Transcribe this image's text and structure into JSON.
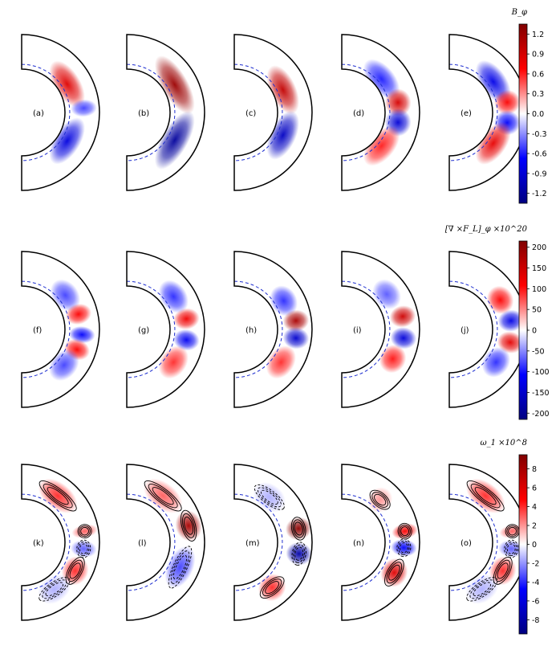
{
  "chart_data": [
    {
      "type": "heatmap",
      "colormap": "seismic",
      "colorbar_title": "B_φ",
      "colorbar_ticks": [
        "1.2",
        "0.9",
        "0.6",
        "0.3",
        "0.0",
        "-0.3",
        "-0.6",
        "-0.9",
        "-1.2"
      ],
      "clim": [
        -1.35,
        1.35
      ],
      "panels": [
        {
          "label": "(a)",
          "blobs": [
            {
              "lat": 32,
              "r": 0.3,
              "amp": 0.85,
              "w": 28
            },
            {
              "lat": -32,
              "r": 0.3,
              "amp": -0.85,
              "w": 28
            },
            {
              "lat": 4,
              "r": 0.55,
              "amp": -0.5,
              "w": 8
            }
          ]
        },
        {
          "label": "(b)",
          "blobs": [
            {
              "lat": 30,
              "r": 0.35,
              "amp": 1.2,
              "w": 34
            },
            {
              "lat": -30,
              "r": 0.35,
              "amp": -1.2,
              "w": 34
            }
          ]
        },
        {
          "label": "(c)",
          "blobs": [
            {
              "lat": 25,
              "r": 0.3,
              "amp": 1.0,
              "w": 28
            },
            {
              "lat": -25,
              "r": 0.3,
              "amp": -1.0,
              "w": 28
            }
          ]
        },
        {
          "label": "(d)",
          "blobs": [
            {
              "lat": 40,
              "r": 0.25,
              "amp": -0.6,
              "w": 26
            },
            {
              "lat": 10,
              "r": 0.4,
              "amp": 0.9,
              "w": 14
            },
            {
              "lat": -10,
              "r": 0.4,
              "amp": -0.9,
              "w": 14
            },
            {
              "lat": -40,
              "r": 0.25,
              "amp": 0.6,
              "w": 26
            }
          ]
        },
        {
          "label": "(e)",
          "blobs": [
            {
              "lat": 35,
              "r": 0.3,
              "amp": -0.8,
              "w": 26
            },
            {
              "lat": 10,
              "r": 0.45,
              "amp": 0.7,
              "w": 12
            },
            {
              "lat": -10,
              "r": 0.45,
              "amp": -0.7,
              "w": 12
            },
            {
              "lat": -35,
              "r": 0.3,
              "amp": 0.8,
              "w": 26
            }
          ]
        }
      ]
    },
    {
      "type": "heatmap",
      "colormap": "seismic",
      "colorbar_title": "[∇ ×F_L]_φ ×10^20",
      "colorbar_ticks": [
        "200",
        "150",
        "100",
        "50",
        "0",
        "-50",
        "-100",
        "-150",
        "-200"
      ],
      "clim": [
        -215,
        215
      ],
      "panels": [
        {
          "label": "(f)",
          "blobs": [
            {
              "lat": 38,
              "r": 0.35,
              "amp": -80,
              "w": 18
            },
            {
              "lat": 15,
              "r": 0.45,
              "amp": 110,
              "w": 10
            },
            {
              "lat": -5,
              "r": 0.5,
              "amp": -110,
              "w": 8
            },
            {
              "lat": -20,
              "r": 0.45,
              "amp": 110,
              "w": 10
            },
            {
              "lat": -40,
              "r": 0.35,
              "amp": -80,
              "w": 18
            }
          ]
        },
        {
          "label": "(g)",
          "blobs": [
            {
              "lat": 35,
              "r": 0.4,
              "amp": -90,
              "w": 18
            },
            {
              "lat": 10,
              "r": 0.5,
              "amp": 120,
              "w": 10
            },
            {
              "lat": -10,
              "r": 0.5,
              "amp": -120,
              "w": 10
            },
            {
              "lat": -35,
              "r": 0.4,
              "amp": 90,
              "w": 18
            }
          ]
        },
        {
          "label": "(h)",
          "blobs": [
            {
              "lat": 30,
              "r": 0.4,
              "amp": -90,
              "w": 16
            },
            {
              "lat": 8,
              "r": 0.55,
              "amp": 180,
              "w": 10
            },
            {
              "lat": -8,
              "r": 0.55,
              "amp": -150,
              "w": 10
            },
            {
              "lat": -35,
              "r": 0.4,
              "amp": 90,
              "w": 18
            }
          ]
        },
        {
          "label": "(i)",
          "blobs": [
            {
              "lat": 38,
              "r": 0.4,
              "amp": -70,
              "w": 16
            },
            {
              "lat": 12,
              "r": 0.55,
              "amp": 150,
              "w": 10
            },
            {
              "lat": -8,
              "r": 0.55,
              "amp": -140,
              "w": 10
            },
            {
              "lat": -30,
              "r": 0.45,
              "amp": 100,
              "w": 14
            }
          ]
        },
        {
          "label": "(j)",
          "blobs": [
            {
              "lat": 30,
              "r": 0.45,
              "amp": 110,
              "w": 14
            },
            {
              "lat": 8,
              "r": 0.55,
              "amp": -130,
              "w": 10
            },
            {
              "lat": -12,
              "r": 0.55,
              "amp": 130,
              "w": 10
            },
            {
              "lat": -35,
              "r": 0.4,
              "amp": -90,
              "w": 16
            }
          ]
        }
      ]
    },
    {
      "type": "heatmap",
      "colormap": "seismic",
      "colorbar_title": "ω_1 ×10^8",
      "colorbar_ticks": [
        "8",
        "6",
        "4",
        "2",
        "0",
        "-2",
        "-4",
        "-6",
        "-8"
      ],
      "clim": [
        -9.5,
        9.5
      ],
      "panels": [
        {
          "label": "(k)",
          "blobs": [
            {
              "lat": 52,
              "r": 0.45,
              "amp": 4,
              "w": 22
            },
            {
              "lat": 10,
              "r": 0.6,
              "amp": 3,
              "w": 6
            },
            {
              "lat": -6,
              "r": 0.55,
              "amp": -3,
              "w": 8
            },
            {
              "lat": -28,
              "r": 0.5,
              "amp": 4,
              "w": 14
            },
            {
              "lat": -55,
              "r": 0.4,
              "amp": -1.5,
              "w": 18
            }
          ]
        },
        {
          "label": "(l)",
          "blobs": [
            {
              "lat": 52,
              "r": 0.45,
              "amp": 3,
              "w": 22
            },
            {
              "lat": 15,
              "r": 0.6,
              "amp": 8,
              "w": 14
            },
            {
              "lat": -25,
              "r": 0.45,
              "amp": -3.5,
              "w": 22
            }
          ]
        },
        {
          "label": "(m)",
          "blobs": [
            {
              "lat": 52,
              "r": 0.4,
              "amp": -1.5,
              "w": 18
            },
            {
              "lat": 12,
              "r": 0.65,
              "amp": 9,
              "w": 10
            },
            {
              "lat": -10,
              "r": 0.65,
              "amp": -8,
              "w": 10
            },
            {
              "lat": -50,
              "r": 0.45,
              "amp": 4,
              "w": 14
            }
          ]
        },
        {
          "label": "(n)",
          "blobs": [
            {
              "lat": 48,
              "r": 0.4,
              "amp": 2,
              "w": 12
            },
            {
              "lat": 10,
              "r": 0.6,
              "amp": 5,
              "w": 7
            },
            {
              "lat": -5,
              "r": 0.55,
              "amp": -5,
              "w": 8
            },
            {
              "lat": -30,
              "r": 0.5,
              "amp": 6,
              "w": 14
            }
          ]
        },
        {
          "label": "(o)",
          "blobs": [
            {
              "lat": 52,
              "r": 0.45,
              "amp": 4,
              "w": 22
            },
            {
              "lat": 10,
              "r": 0.6,
              "amp": 3,
              "w": 6
            },
            {
              "lat": -6,
              "r": 0.55,
              "amp": -3,
              "w": 8
            },
            {
              "lat": -28,
              "r": 0.5,
              "amp": 4,
              "w": 14
            },
            {
              "lat": -55,
              "r": 0.4,
              "amp": -1.5,
              "w": 18
            }
          ]
        }
      ]
    }
  ]
}
